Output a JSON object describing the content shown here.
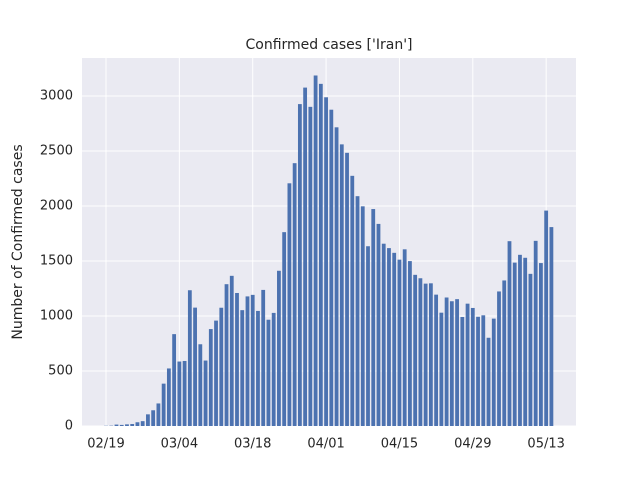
{
  "chart_data": {
    "type": "bar",
    "title": "Confirmed cases ['Iran']",
    "y_label": "Number of Confirmed cases",
    "categories": [
      "02/19",
      null,
      null,
      null,
      null,
      null,
      null,
      null,
      null,
      null,
      null,
      null,
      null,
      null,
      "03/04",
      null,
      null,
      null,
      null,
      null,
      null,
      null,
      null,
      null,
      null,
      null,
      null,
      null,
      "03/18",
      null,
      null,
      null,
      null,
      null,
      null,
      null,
      null,
      null,
      null,
      null,
      null,
      null,
      "04/01",
      null,
      null,
      null,
      null,
      null,
      null,
      null,
      null,
      null,
      null,
      null,
      null,
      null,
      "04/15",
      null,
      null,
      null,
      null,
      null,
      null,
      null,
      null,
      null,
      null,
      null,
      null,
      null,
      "04/29",
      null,
      null,
      null,
      null,
      null,
      null,
      null,
      null,
      null,
      null,
      null,
      null,
      null,
      "05/13",
      null
    ],
    "values": [
      2,
      3,
      13,
      10,
      15,
      18,
      34,
      44,
      106,
      143,
      205,
      385,
      523,
      835,
      586,
      591,
      1234,
      1076,
      743,
      595,
      881,
      958,
      1075,
      1289,
      1365,
      1209,
      1053,
      1178,
      1192,
      1046,
      1237,
      966,
      1028,
      1411,
      1762,
      2206,
      2389,
      2926,
      3076,
      2901,
      3186,
      3110,
      2988,
      2875,
      2715,
      2560,
      2483,
      2274,
      2089,
      1997,
      1634,
      1972,
      1837,
      1657,
      1617,
      1574,
      1512,
      1606,
      1499,
      1374,
      1343,
      1294,
      1297,
      1194,
      1030,
      1168,
      1134,
      1153,
      991,
      1112,
      1073,
      993,
      1006,
      802,
      976,
      1223,
      1323,
      1680,
      1485,
      1556,
      1529,
      1383,
      1683,
      1481,
      1958,
      1808
    ],
    "color": "#4c72b0",
    "ylim": [
      0,
      3345
    ],
    "yticks": [
      0,
      500,
      1000,
      1500,
      2000,
      2500,
      3000
    ],
    "grid": true
  }
}
